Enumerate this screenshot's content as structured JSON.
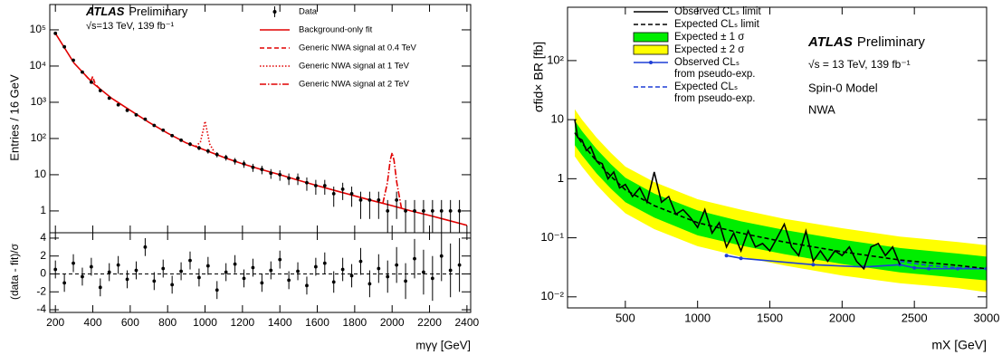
{
  "chart_data": [
    {
      "type": "scatter",
      "y_label": "Entries / 16 GeV",
      "atlas": "ATLAS",
      "status": "Preliminary",
      "energy": "√s=13 TeV, 139 fb⁻¹",
      "log_y": true,
      "ylim": [
        0.25,
        500000
      ],
      "yticks": [
        1,
        10,
        {
          "value": 100,
          "label": "10²"
        },
        {
          "value": 1000,
          "label": "10³"
        },
        {
          "value": 10000,
          "label": "10⁴"
        },
        {
          "value": 100000,
          "label": "10⁵"
        }
      ],
      "points": {
        "name": "Data",
        "color": "#000000",
        "x": [
          200,
          248,
          296,
          344,
          392,
          440,
          488,
          536,
          584,
          632,
          680,
          728,
          776,
          824,
          872,
          920,
          968,
          1016,
          1064,
          1112,
          1160,
          1208,
          1256,
          1304,
          1352,
          1400,
          1448,
          1496,
          1544,
          1592,
          1640,
          1688,
          1736,
          1784,
          1832,
          1880,
          1928,
          1976,
          2024,
          2072,
          2120,
          2168,
          2216,
          2264,
          2312,
          2360
        ],
        "values": [
          80000,
          34000,
          14500,
          6800,
          3600,
          2100,
          1300,
          850,
          600,
          450,
          340,
          230,
          170,
          120,
          90,
          70,
          55,
          45,
          36,
          30,
          24,
          20,
          16,
          14,
          11,
          10,
          8,
          8,
          6,
          5,
          5,
          3,
          4,
          3,
          2,
          2,
          2,
          1,
          2,
          1,
          1,
          1,
          1,
          1,
          1,
          1
        ],
        "errors": [
          283,
          184,
          120,
          82,
          60,
          46,
          36,
          29,
          24,
          21,
          18,
          15,
          13,
          11,
          9.5,
          8.4,
          7.4,
          6.7,
          6,
          5.5,
          4.9,
          4.5,
          4,
          3.7,
          3.3,
          3.2,
          2.8,
          2.8,
          2.4,
          2.2,
          2.2,
          1.7,
          2,
          1.7,
          1.4,
          1.4,
          1.4,
          1,
          1.4,
          1,
          1,
          1,
          1,
          1,
          1,
          1
        ]
      },
      "series": [
        {
          "name": "Background-only fit",
          "color": "#e00000",
          "style": "solid",
          "x": [
            200,
            300,
            400,
            500,
            600,
            700,
            800,
            900,
            1000,
            1100,
            1200,
            1300,
            1400,
            1500,
            1600,
            1700,
            1800,
            1900,
            2000,
            2100,
            2200,
            2300,
            2400
          ],
          "values": [
            80000,
            12000,
            3400,
            1300,
            600,
            280,
            140,
            75,
            48,
            30,
            20,
            14,
            10,
            7,
            5,
            3.6,
            2.6,
            1.9,
            1.4,
            1.0,
            0.75,
            0.55,
            0.4
          ]
        },
        {
          "name": "Generic NWA signal at 0.4 TeV",
          "color": "#e00000",
          "style": "dashed",
          "x": [
            360,
            380,
            392,
            400,
            408,
            420,
            440
          ],
          "values": [
            5600,
            4300,
            4100,
            5200,
            3700,
            2900,
            2300
          ]
        },
        {
          "name": "Generic NWA signal at 1 TeV",
          "color": "#e00000",
          "style": "dotted",
          "x": [
            950,
            975,
            990,
            1000,
            1010,
            1025,
            1050
          ],
          "values": [
            60,
            80,
            170,
            300,
            170,
            70,
            42
          ]
        },
        {
          "name": "Generic NWA signal at 2 TeV",
          "color": "#e00000",
          "style": "dashdot",
          "x": [
            1950,
            1975,
            1990,
            2000,
            2010,
            2025,
            2050
          ],
          "values": [
            1.6,
            6,
            25,
            40,
            25,
            6,
            1.2
          ]
        }
      ]
    },
    {
      "type": "scatter",
      "y_label": "(data - fit)/σ",
      "x_label": "mγγ [GeV]",
      "xlim": [
        170,
        2420
      ],
      "xticks": [
        200,
        400,
        600,
        800,
        1000,
        1200,
        1400,
        1600,
        1800,
        2000,
        2200,
        2400
      ],
      "ylim": [
        -4.3,
        4.6
      ],
      "yticks": [
        -4,
        -2,
        0,
        2,
        4
      ],
      "reference": 0,
      "points": {
        "color": "#000000",
        "x": [
          200,
          248,
          296,
          344,
          392,
          440,
          488,
          536,
          584,
          632,
          680,
          728,
          776,
          824,
          872,
          920,
          968,
          1016,
          1064,
          1112,
          1160,
          1208,
          1256,
          1304,
          1352,
          1400,
          1448,
          1496,
          1544,
          1592,
          1640,
          1688,
          1736,
          1784,
          1832,
          1880,
          1928,
          1976,
          2024,
          2072,
          2120,
          2168,
          2216,
          2264,
          2312,
          2360
        ],
        "values": [
          0.5,
          -1,
          1.2,
          -0.3,
          0.8,
          -1.5,
          0.2,
          1,
          -0.6,
          0.4,
          3,
          -0.8,
          0.6,
          -1.2,
          0.3,
          1.5,
          -0.4,
          0.9,
          -1.8,
          0.2,
          1.1,
          -0.5,
          0.7,
          -1,
          0.4,
          1.6,
          -0.7,
          0.3,
          -1.3,
          0.8,
          1.2,
          -0.9,
          0.5,
          -0.2,
          1.4,
          -1.1,
          0.6,
          -0.3,
          1,
          -0.8,
          1.7,
          0.2,
          -0.5,
          2,
          0.4,
          1
        ],
        "errors": [
          1,
          1,
          1,
          1,
          1,
          1,
          1,
          1,
          1,
          1,
          1,
          1,
          1,
          1,
          1,
          1,
          1,
          1,
          1,
          1,
          1,
          1,
          1,
          1,
          1,
          1,
          1,
          1,
          1,
          1,
          1.2,
          1.2,
          1.3,
          1.3,
          1.5,
          1.5,
          1.6,
          1.8,
          2,
          2,
          2.2,
          2.5,
          2.5,
          2.8,
          3,
          3
        ]
      }
    },
    {
      "type": "line",
      "y_label": "σfid× BR [fb]",
      "x_label": "mX [GeV]",
      "atlas": "ATLAS",
      "status": "Preliminary",
      "energy": "√s = 13 TeV, 139 fb⁻¹",
      "model": "Spin-0 Model",
      "width": "NWA",
      "log_y": true,
      "xlim": [
        100,
        3000
      ],
      "xticks": [
        500,
        1000,
        1500,
        2000,
        2500,
        3000
      ],
      "ylim": [
        0.0065,
        800
      ],
      "yticks": [
        {
          "value": 0.01,
          "label": "10⁻²"
        },
        {
          "value": 0.1,
          "label": "10⁻¹"
        },
        1,
        10,
        {
          "value": 100,
          "label": "10²"
        }
      ],
      "series": [
        {
          "name": "Observed CLₛ limit",
          "color": "#000000",
          "style": "solid",
          "x": [
            150,
            170,
            200,
            230,
            260,
            300,
            340,
            380,
            420,
            460,
            500,
            550,
            600,
            650,
            700,
            750,
            800,
            850,
            900,
            950,
            1000,
            1050,
            1100,
            1150,
            1200,
            1250,
            1300,
            1350,
            1400,
            1450,
            1500,
            1550,
            1600,
            1650,
            1700,
            1750,
            1800,
            1850,
            1900,
            1950,
            2000,
            2050,
            2100,
            2150,
            2200,
            2250,
            2300,
            2350,
            2400
          ],
          "values": [
            10,
            5,
            4.5,
            3,
            3.5,
            2,
            1.8,
            1,
            1.3,
            0.7,
            0.8,
            0.5,
            0.7,
            0.4,
            1.3,
            0.4,
            0.5,
            0.25,
            0.3,
            0.22,
            0.15,
            0.3,
            0.12,
            0.18,
            0.07,
            0.12,
            0.06,
            0.13,
            0.07,
            0.08,
            0.06,
            0.1,
            0.17,
            0.07,
            0.05,
            0.13,
            0.04,
            0.06,
            0.04,
            0.06,
            0.05,
            0.07,
            0.04,
            0.03,
            0.07,
            0.08,
            0.05,
            0.07,
            0.035
          ]
        },
        {
          "name": "Expected CLₛ limit",
          "color": "#000000",
          "style": "dashed",
          "x": [
            150,
            200,
            300,
            400,
            500,
            700,
            1000,
            1300,
            1600,
            2000,
            2400,
            2800,
            3000
          ],
          "values": [
            6,
            4,
            2,
            1.1,
            0.65,
            0.35,
            0.18,
            0.12,
            0.085,
            0.058,
            0.042,
            0.034,
            0.03
          ]
        },
        {
          "name": "Expected ± 1 σ",
          "color": "#00ee00",
          "x": [
            150,
            200,
            300,
            400,
            500,
            700,
            1000,
            1300,
            1600,
            2000,
            2400,
            2800,
            3000
          ],
          "lower": [
            3.7,
            2.5,
            1.24,
            0.68,
            0.4,
            0.22,
            0.11,
            0.074,
            0.053,
            0.036,
            0.026,
            0.021,
            0.019
          ],
          "upper": [
            9.6,
            6.4,
            3.2,
            1.76,
            1.04,
            0.56,
            0.29,
            0.19,
            0.136,
            0.093,
            0.067,
            0.054,
            0.048
          ]
        },
        {
          "name": "Expected ± 2 σ",
          "color": "#ffff00",
          "x": [
            150,
            200,
            300,
            400,
            500,
            700,
            1000,
            1300,
            1600,
            2000,
            2400,
            2800,
            3000
          ],
          "lower": [
            2.4,
            1.6,
            0.8,
            0.44,
            0.26,
            0.14,
            0.072,
            0.048,
            0.034,
            0.023,
            0.017,
            0.014,
            0.012
          ],
          "upper": [
            15,
            10,
            5,
            2.75,
            1.6,
            0.88,
            0.45,
            0.3,
            0.21,
            0.145,
            0.105,
            0.085,
            0.075
          ]
        },
        {
          "name": "Observed CLₛ",
          "name_line2": "from pseudo-exp.",
          "color": "#1f3fd6",
          "style": "solid",
          "markers": true,
          "x": [
            1200,
            1300,
            1800,
            2150,
            2400,
            2500,
            2600,
            2800,
            3000
          ],
          "values": [
            0.05,
            0.045,
            0.035,
            0.032,
            0.035,
            0.031,
            0.03,
            0.03,
            0.03
          ]
        },
        {
          "name": "Expected CLₛ",
          "name_line2": "from pseudo-exp.",
          "color": "#1f3fd6",
          "style": "dashed",
          "x": [
            2400,
            2600,
            2800,
            3000
          ],
          "values": [
            0.04,
            0.034,
            0.031,
            0.03
          ]
        }
      ]
    }
  ]
}
